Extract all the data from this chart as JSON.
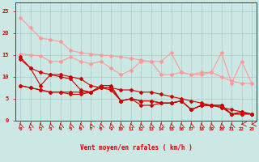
{
  "background_color": "#cce8e4",
  "grid_color": "#aacccc",
  "xlabel": "Vent moyen/en rafales ( km/h )",
  "x": [
    0,
    1,
    2,
    3,
    4,
    5,
    6,
    7,
    8,
    9,
    10,
    11,
    12,
    13,
    14,
    15,
    16,
    17,
    18,
    19,
    20,
    21,
    22,
    23
  ],
  "line_light1": [
    23.5,
    21.2,
    18.8,
    18.5,
    18.0,
    16.0,
    15.5,
    15.2,
    15.0,
    14.8,
    14.5,
    14.2,
    13.8,
    13.5,
    13.5,
    15.5,
    11.0,
    10.5,
    11.0,
    11.0,
    15.5,
    8.5,
    13.5,
    8.5
  ],
  "line_light2": [
    15.2,
    15.0,
    14.8,
    13.5,
    13.5,
    14.5,
    13.5,
    13.0,
    13.5,
    12.0,
    10.5,
    11.5,
    13.5,
    13.5,
    10.5,
    10.5,
    11.0,
    10.5,
    10.5,
    11.0,
    10.0,
    9.0,
    8.5,
    8.5
  ],
  "line_dark1": [
    14.5,
    12.0,
    11.0,
    10.5,
    10.5,
    10.0,
    9.5,
    8.0,
    7.5,
    7.5,
    7.0,
    7.0,
    6.5,
    6.5,
    6.0,
    5.5,
    5.0,
    4.5,
    4.0,
    3.5,
    3.0,
    2.5,
    2.0,
    1.5
  ],
  "line_dark2": [
    14.0,
    12.0,
    8.0,
    10.5,
    10.0,
    9.5,
    7.0,
    6.5,
    8.0,
    8.0,
    4.5,
    5.0,
    4.5,
    4.5,
    4.0,
    4.0,
    4.5,
    2.5,
    3.5,
    3.5,
    3.5,
    1.5,
    1.5,
    1.5
  ],
  "line_dark3": [
    8.0,
    7.5,
    7.0,
    6.5,
    6.5,
    6.5,
    6.5,
    6.5,
    7.5,
    7.5,
    4.5,
    5.0,
    4.5,
    4.5,
    4.0,
    4.0,
    4.5,
    2.5,
    3.5,
    3.5,
    3.0,
    1.5,
    2.0,
    1.5
  ],
  "line_dark4": [
    8.0,
    7.5,
    7.0,
    6.5,
    6.5,
    6.0,
    6.0,
    6.5,
    7.5,
    7.0,
    4.5,
    5.0,
    3.5,
    3.5,
    4.0,
    4.0,
    4.5,
    2.5,
    3.5,
    3.5,
    3.5,
    1.5,
    1.5,
    1.5
  ],
  "ylim": [
    0,
    27
  ],
  "xlim": [
    -0.5,
    23.5
  ],
  "color_light": "#ff9999",
  "color_dark": "#cc0000",
  "arrow_angles": [
    210,
    210,
    210,
    210,
    210,
    210,
    210,
    225,
    210,
    210,
    210,
    210,
    210,
    210,
    210,
    210,
    210,
    210,
    210,
    210,
    210,
    210,
    270,
    270
  ]
}
